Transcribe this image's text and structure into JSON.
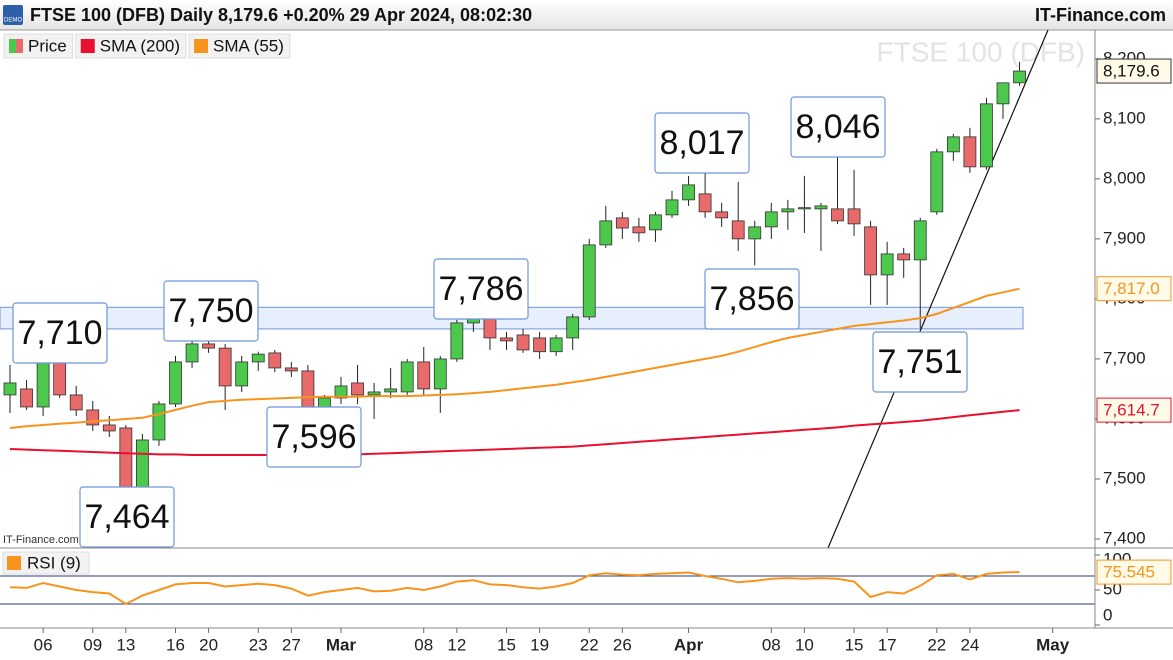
{
  "header": {
    "title": "FTSE 100 (DFB) Daily 8,179.6 +0.20% 29 Apr 2024, 08:02:30",
    "brand": "IT-Finance.com",
    "badge": "DEMO"
  },
  "chart_data": [
    {
      "type": "candlestick",
      "watermark": "FTSE 100 (DFB)",
      "credit": "IT-Finance.com",
      "categories": [
        null,
        null,
        "06",
        null,
        null,
        "09",
        null,
        "13",
        null,
        null,
        "16",
        null,
        "20",
        null,
        null,
        "23",
        null,
        "27",
        null,
        null,
        "Mar",
        null,
        null,
        null,
        null,
        "08",
        null,
        "12",
        null,
        null,
        "15",
        null,
        "19",
        null,
        null,
        "22",
        null,
        "26",
        null,
        null,
        null,
        "Apr",
        null,
        null,
        null,
        null,
        "08",
        null,
        "10",
        null,
        null,
        "15",
        null,
        "17",
        null,
        null,
        "22",
        null,
        "24",
        null,
        null,
        null,
        null,
        "May"
      ],
      "ylim": [
        7385,
        8248
      ],
      "yticks": [
        {
          "value": 7400,
          "label": "7,400"
        },
        {
          "value": 7500,
          "label": "7,500"
        },
        {
          "value": 7600,
          "label": "7,600"
        },
        {
          "value": 7700,
          "label": "7,700"
        },
        {
          "value": 7800,
          "label": "7,800"
        },
        {
          "value": 7900,
          "label": "7,900"
        },
        {
          "value": 8000,
          "label": "8,000"
        },
        {
          "value": 8100,
          "label": "8,100"
        },
        {
          "value": 8200,
          "label": "8,200"
        }
      ],
      "highlight_band": [
        7750,
        7786
      ],
      "annotations": [
        "7,710",
        "7,750",
        "7,786",
        "8,017",
        "8,046",
        "7,856",
        "7,464",
        "7,596",
        "7,751"
      ],
      "series": [
        {
          "name": "Price",
          "type": "candlestick",
          "up_color": "#4cc94c",
          "down_color": "#e86a6a",
          "open": [
            7640,
            7650,
            7620,
            7695,
            7640,
            7615,
            7590,
            7585,
            7485,
            7565,
            7625,
            7695,
            7725,
            7718,
            7655,
            7695,
            7710,
            7685,
            7680,
            7610,
            7635,
            7660,
            7640,
            7645,
            7645,
            7695,
            7650,
            7700,
            7760,
            7780,
            7735,
            7740,
            7735,
            7712,
            7735,
            7770,
            7890,
            7935,
            7920,
            7915,
            7940,
            7965,
            7975,
            7945,
            7930,
            7900,
            7920,
            7945,
            7950,
            7950,
            7950,
            7950,
            7920,
            7840,
            7875,
            7865,
            7945,
            8045,
            8070,
            8020,
            8125,
            8160,
            null,
            null
          ],
          "high": [
            7690,
            7665,
            7700,
            7710,
            7655,
            7630,
            7605,
            7590,
            7575,
            7630,
            7705,
            7740,
            7750,
            7725,
            7705,
            7712,
            7715,
            7695,
            7690,
            7640,
            7670,
            7690,
            7660,
            7685,
            7700,
            7720,
            7705,
            7765,
            7786,
            7786,
            7745,
            7750,
            7745,
            7740,
            7775,
            7900,
            7955,
            7945,
            7935,
            7945,
            7980,
            8005,
            8017,
            7960,
            7995,
            7930,
            7960,
            7965,
            8005,
            7960,
            8046,
            8015,
            7930,
            7895,
            7885,
            7935,
            8050,
            8075,
            8085,
            8135,
            8160,
            8195,
            null,
            null
          ],
          "low": [
            7610,
            7615,
            7605,
            7635,
            7605,
            7580,
            7570,
            7464,
            7470,
            7555,
            7620,
            7685,
            7710,
            7615,
            7645,
            7680,
            7678,
            7670,
            7596,
            7600,
            7625,
            7625,
            7600,
            7635,
            7640,
            7640,
            7610,
            7695,
            7745,
            7715,
            7715,
            7710,
            7700,
            7705,
            7715,
            7765,
            7885,
            7900,
            7895,
            7895,
            7935,
            7955,
            7935,
            7920,
            7880,
            7856,
            7900,
            7915,
            7910,
            7880,
            7925,
            7905,
            7790,
            7790,
            7835,
            7751,
            7940,
            8030,
            8010,
            8015,
            8100,
            8155,
            null,
            null
          ],
          "close": [
            7660,
            7620,
            7695,
            7640,
            7615,
            7590,
            7580,
            7485,
            7565,
            7625,
            7695,
            7725,
            7718,
            7655,
            7695,
            7708,
            7685,
            7680,
            7610,
            7635,
            7655,
            7640,
            7645,
            7650,
            7695,
            7650,
            7700,
            7760,
            7775,
            7735,
            7730,
            7715,
            7712,
            7735,
            7770,
            7890,
            7930,
            7918,
            7910,
            7940,
            7965,
            7990,
            7945,
            7935,
            7900,
            7920,
            7945,
            7950,
            7952,
            7955,
            7930,
            7925,
            7840,
            7875,
            7865,
            7930,
            8045,
            8070,
            8020,
            8125,
            8160,
            8179.6,
            null,
            null
          ],
          "value_labels": [
            null,
            null,
            null,
            null,
            null,
            null,
            null,
            null,
            null,
            null,
            null,
            null,
            null,
            null,
            null,
            null,
            null,
            null,
            null,
            null,
            null,
            null,
            null,
            null,
            null,
            null,
            null,
            null,
            null,
            null,
            null,
            null,
            null,
            null,
            null,
            null,
            null,
            null,
            null,
            null,
            null,
            null,
            null,
            null,
            null,
            null,
            null,
            null,
            null,
            null,
            null,
            null,
            null,
            null,
            null,
            null,
            null,
            null,
            null,
            null,
            null,
            "8,179.6",
            null,
            null
          ]
        },
        {
          "name": "SMA (200)",
          "type": "line",
          "color": "#e8102e",
          "values": [
            7550,
            7549,
            7548,
            7547,
            7546,
            7545,
            7544,
            7543,
            7542,
            7541,
            7541,
            7540,
            7540,
            7540,
            7540,
            7540,
            7540,
            7540,
            7540,
            7540,
            7541,
            7541,
            7542,
            7543,
            7544,
            7545,
            7546,
            7547,
            7548,
            7549,
            7550,
            7551,
            7552,
            7553,
            7554,
            7556,
            7558,
            7560,
            7562,
            7564,
            7566,
            7568,
            7570,
            7572,
            7574,
            7576,
            7578,
            7580,
            7582,
            7584,
            7586,
            7589,
            7591,
            7593,
            7595,
            7597,
            7600,
            7603,
            7606,
            7609,
            7612,
            7614.7,
            null,
            null
          ],
          "value_labels": [
            null,
            null,
            null,
            null,
            null,
            null,
            null,
            null,
            null,
            null,
            null,
            null,
            null,
            null,
            null,
            null,
            null,
            null,
            null,
            null,
            null,
            null,
            null,
            null,
            null,
            null,
            null,
            null,
            null,
            null,
            null,
            null,
            null,
            null,
            null,
            null,
            null,
            null,
            null,
            null,
            null,
            null,
            null,
            null,
            null,
            null,
            null,
            null,
            null,
            null,
            null,
            null,
            null,
            null,
            null,
            null,
            null,
            null,
            null,
            null,
            null,
            "7,614.7",
            null,
            null
          ]
        },
        {
          "name": "SMA (55)",
          "type": "line",
          "color": "#f7941d",
          "values": [
            7585,
            7588,
            7590,
            7592,
            7594,
            7596,
            7598,
            7600,
            7602,
            7608,
            7615,
            7622,
            7628,
            7630,
            7632,
            7633,
            7634,
            7635,
            7636,
            7637,
            7637,
            7637,
            7638,
            7638,
            7638,
            7639,
            7640,
            7641,
            7643,
            7645,
            7648,
            7651,
            7654,
            7657,
            7661,
            7665,
            7670,
            7675,
            7680,
            7685,
            7690,
            7695,
            7700,
            7705,
            7712,
            7720,
            7728,
            7735,
            7740,
            7745,
            7750,
            7755,
            7758,
            7761,
            7764,
            7768,
            7775,
            7785,
            7795,
            7805,
            7811,
            7817.0,
            null,
            null
          ],
          "value_labels": [
            null,
            null,
            null,
            null,
            null,
            null,
            null,
            null,
            null,
            null,
            null,
            null,
            null,
            null,
            null,
            null,
            null,
            null,
            null,
            null,
            null,
            null,
            null,
            null,
            null,
            null,
            null,
            null,
            null,
            null,
            null,
            null,
            null,
            null,
            null,
            null,
            null,
            null,
            null,
            null,
            null,
            null,
            null,
            null,
            null,
            null,
            null,
            null,
            null,
            null,
            null,
            null,
            null,
            null,
            null,
            null,
            null,
            null,
            null,
            null,
            null,
            "7,817.0",
            null,
            null
          ]
        }
      ]
    },
    {
      "type": "line",
      "ylim": [
        0,
        100
      ],
      "yticks": [
        0,
        50,
        100
      ],
      "levels": [
        30,
        70
      ],
      "series": [
        {
          "name": "RSI (9)",
          "color": "#f7941d",
          "values": [
            54,
            53,
            60,
            55,
            50,
            47,
            45,
            30,
            42,
            50,
            58,
            60,
            60,
            55,
            57,
            59,
            57,
            52,
            42,
            47,
            50,
            53,
            48,
            49,
            53,
            50,
            55,
            62,
            64,
            58,
            57,
            54,
            52,
            55,
            60,
            71,
            74,
            72,
            71,
            73,
            74,
            75,
            70,
            66,
            61,
            63,
            66,
            67,
            66,
            67,
            66,
            62,
            40,
            47,
            45,
            56,
            71,
            73,
            65,
            73,
            75,
            75.545,
            null,
            null
          ]
        }
      ]
    }
  ]
}
